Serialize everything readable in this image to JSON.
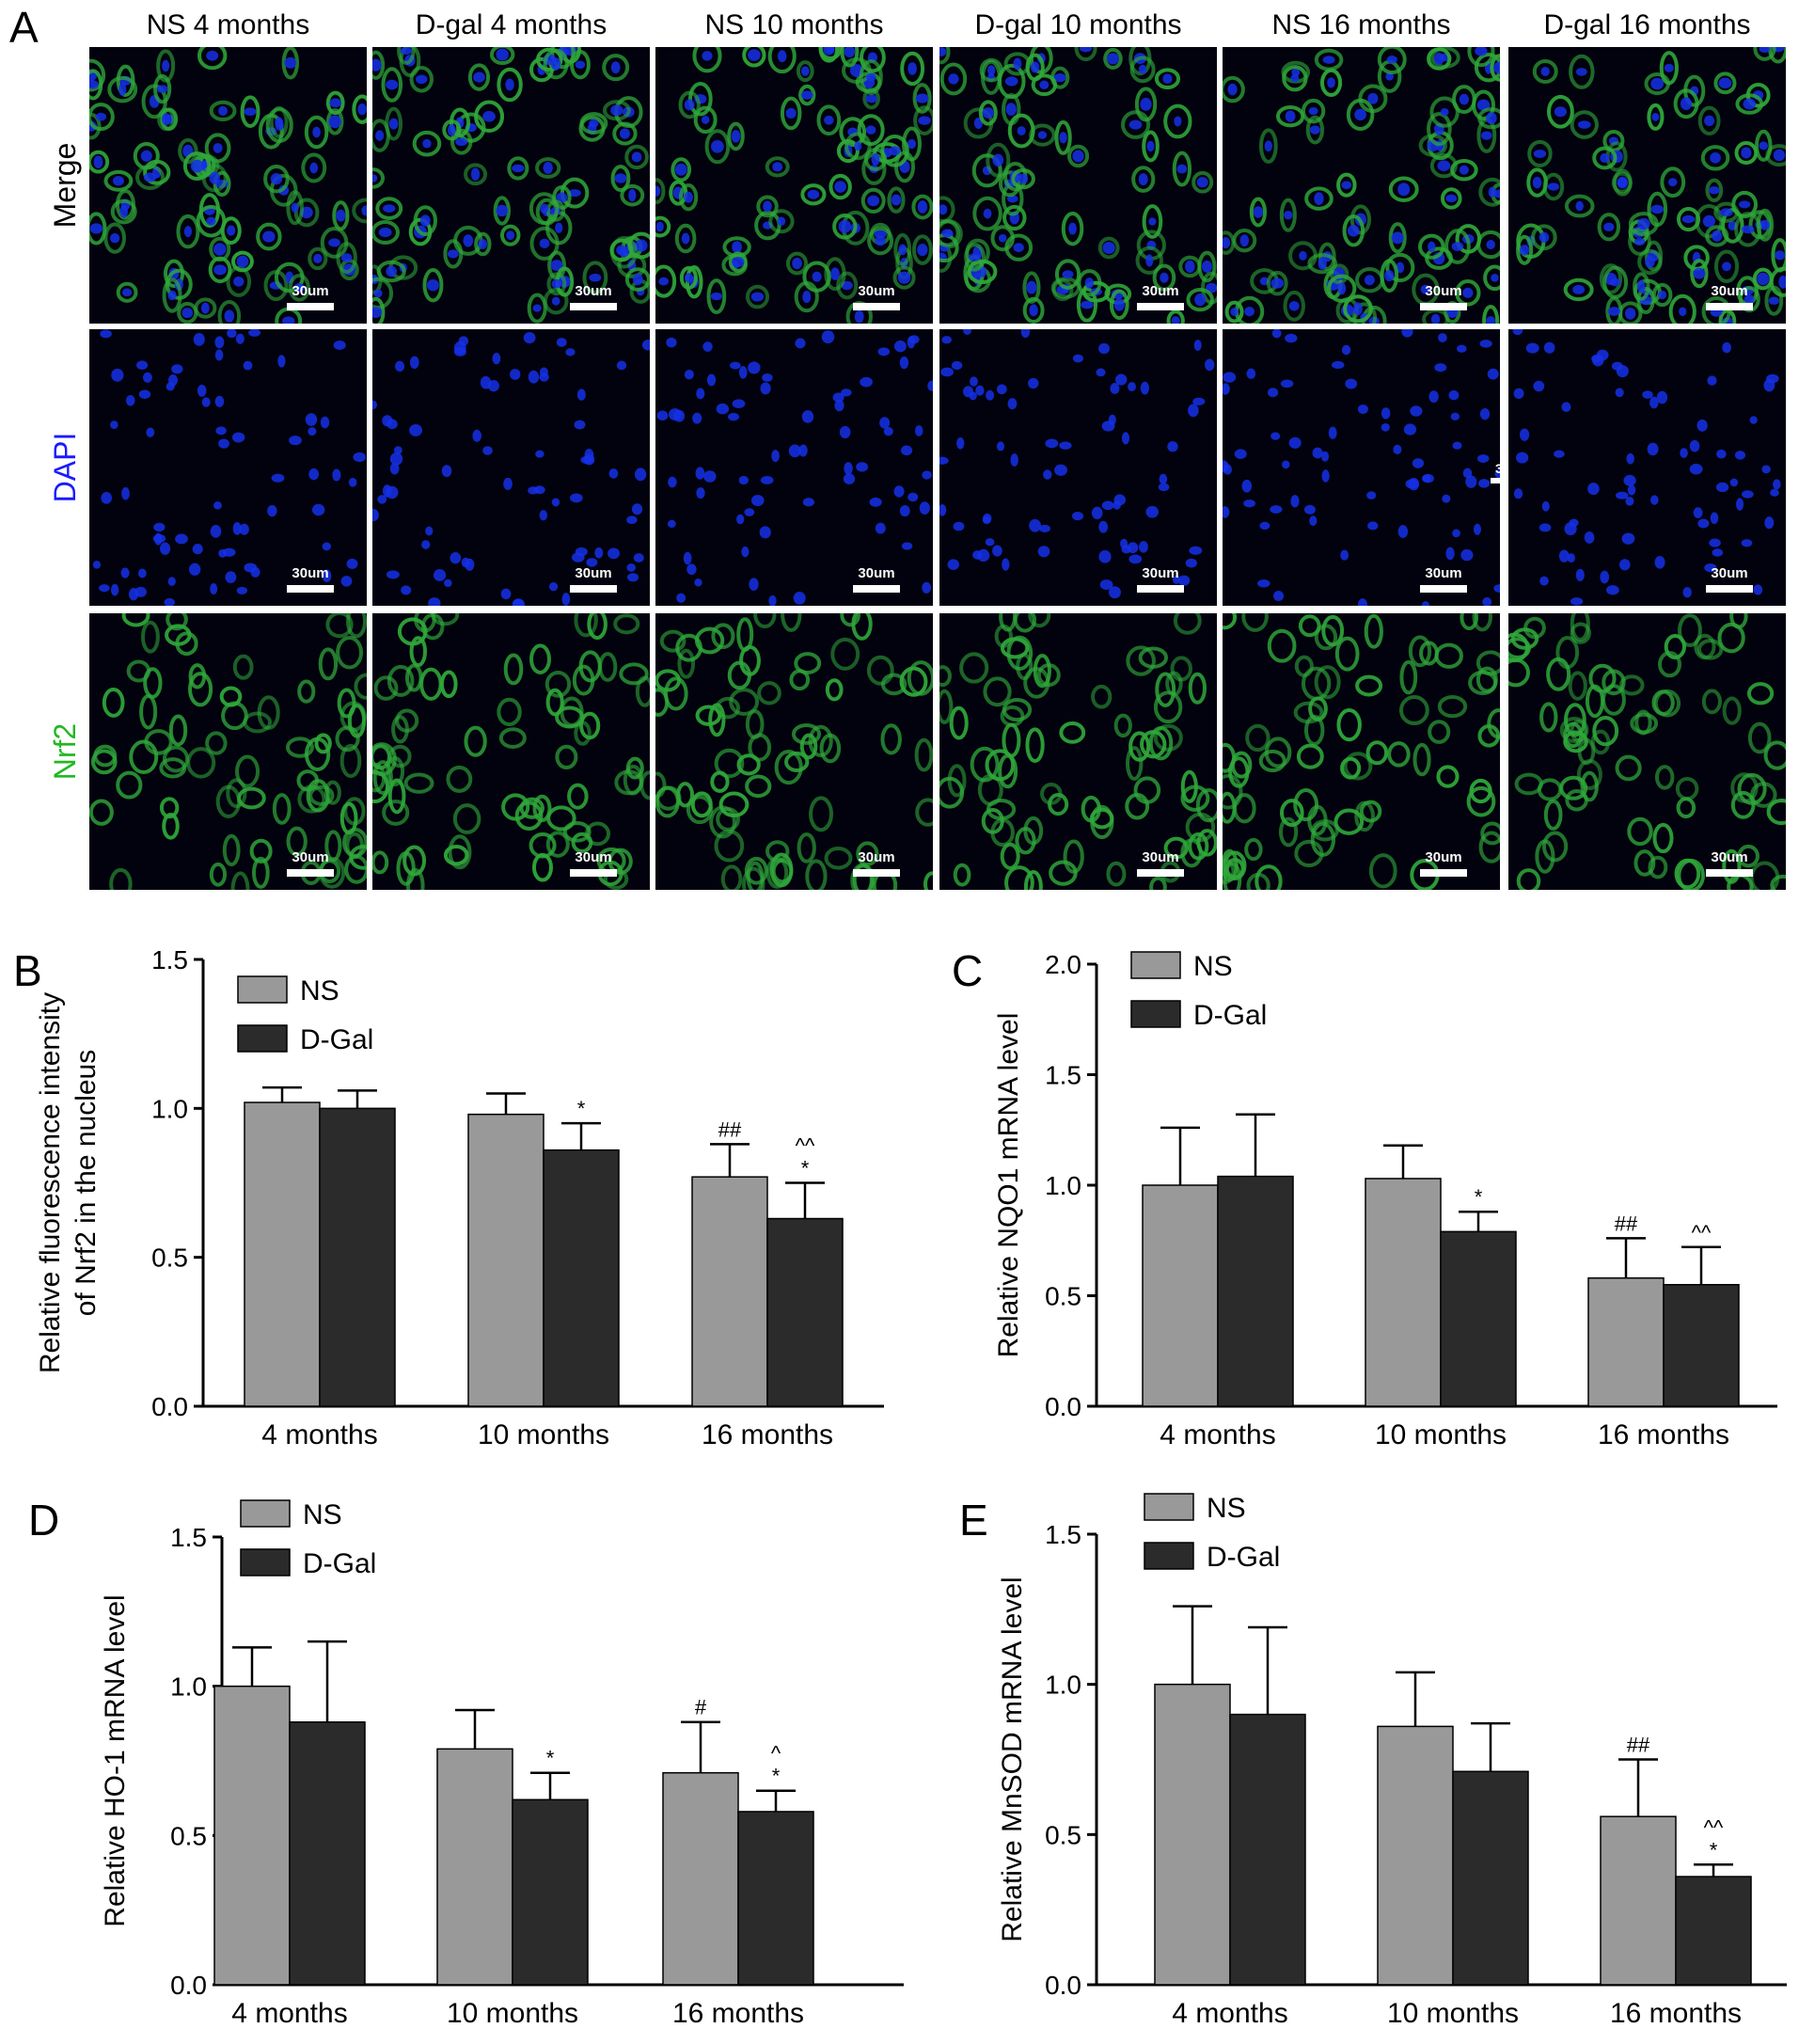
{
  "panel_a": {
    "letter": "A",
    "columns": [
      "NS 4 months",
      "D-gal 4 months",
      "NS 10 months",
      "D-gal 10 months",
      "NS 16 months",
      "D-gal 16 months"
    ],
    "rows": [
      {
        "label": "Merge",
        "color": "#000000"
      },
      {
        "label": "DAPI",
        "color": "#1a1aff"
      },
      {
        "label": "Nrf2",
        "color": "#22b822"
      }
    ],
    "scale_bar_label": "30um",
    "stray_mark": "3",
    "colors": {
      "background": "#02020e",
      "nucleus": "#1530e8",
      "cytoplasm": "#2fa83a"
    }
  },
  "legend": {
    "ns": "NS",
    "dgal": "D-Gal"
  },
  "colors": {
    "ns": "#999999",
    "dgal": "#2b2b2b",
    "axis": "#000000"
  },
  "chart_data": [
    {
      "panel": "B",
      "type": "bar",
      "ylabel_lines": [
        "Relative fluorescence intensity",
        "of Nrf2 in the nucleus"
      ],
      "categories": [
        "4 months",
        "10 months",
        "16 months"
      ],
      "ylim": [
        0,
        1.5
      ],
      "yticks": [
        "0.0",
        "0.5",
        "1.0",
        "1.5"
      ],
      "legend_position": "top-left",
      "grid": false,
      "series": [
        {
          "name": "NS",
          "values": [
            1.02,
            0.98,
            0.77
          ],
          "errors": [
            0.05,
            0.07,
            0.11
          ],
          "marks": [
            "",
            "",
            "##"
          ]
        },
        {
          "name": "D-Gal",
          "values": [
            1.0,
            0.86,
            0.63
          ],
          "errors": [
            0.06,
            0.09,
            0.12
          ],
          "marks": [
            "",
            "*",
            "^^\n*"
          ]
        }
      ]
    },
    {
      "panel": "C",
      "type": "bar",
      "ylabel_lines": [
        "Relative NQO1 mRNA level"
      ],
      "categories": [
        "4 months",
        "10 months",
        "16 months"
      ],
      "ylim": [
        0,
        2.0
      ],
      "yticks": [
        "0.0",
        "0.5",
        "1.0",
        "1.5",
        "2.0"
      ],
      "legend_position": "top-left",
      "grid": false,
      "series": [
        {
          "name": "NS",
          "values": [
            1.0,
            1.03,
            0.58
          ],
          "errors": [
            0.26,
            0.15,
            0.18
          ],
          "marks": [
            "",
            "",
            "##"
          ]
        },
        {
          "name": "D-Gal",
          "values": [
            1.04,
            0.79,
            0.55
          ],
          "errors": [
            0.28,
            0.09,
            0.17
          ],
          "marks": [
            "",
            "*",
            "^^"
          ]
        }
      ]
    },
    {
      "panel": "D",
      "type": "bar",
      "ylabel_lines": [
        "Relative HO-1 mRNA level"
      ],
      "categories": [
        "4 months",
        "10 months",
        "16 months"
      ],
      "ylim": [
        0,
        1.5
      ],
      "yticks": [
        "0.0",
        "0.5",
        "1.0",
        "1.5"
      ],
      "legend_position": "top-left",
      "grid": false,
      "series": [
        {
          "name": "NS",
          "values": [
            1.0,
            0.79,
            0.71
          ],
          "errors": [
            0.13,
            0.13,
            0.17
          ],
          "marks": [
            "",
            "",
            "#"
          ]
        },
        {
          "name": "D-Gal",
          "values": [
            0.88,
            0.62,
            0.58
          ],
          "errors": [
            0.27,
            0.09,
            0.07
          ],
          "marks": [
            "",
            "*",
            "^\n*"
          ]
        }
      ]
    },
    {
      "panel": "E",
      "type": "bar",
      "ylabel_lines": [
        "Relative MnSOD mRNA level"
      ],
      "categories": [
        "4 months",
        "10 months",
        "16 months"
      ],
      "ylim": [
        0,
        1.5
      ],
      "yticks": [
        "0.0",
        "0.5",
        "1.0",
        "1.5"
      ],
      "legend_position": "top-left",
      "grid": false,
      "series": [
        {
          "name": "NS",
          "values": [
            1.0,
            0.86,
            0.56
          ],
          "errors": [
            0.26,
            0.18,
            0.19
          ],
          "marks": [
            "",
            "",
            "##"
          ]
        },
        {
          "name": "D-Gal",
          "values": [
            0.9,
            0.71,
            0.36
          ],
          "errors": [
            0.29,
            0.16,
            0.04
          ],
          "marks": [
            "",
            "",
            "^^\n*"
          ]
        }
      ]
    }
  ]
}
